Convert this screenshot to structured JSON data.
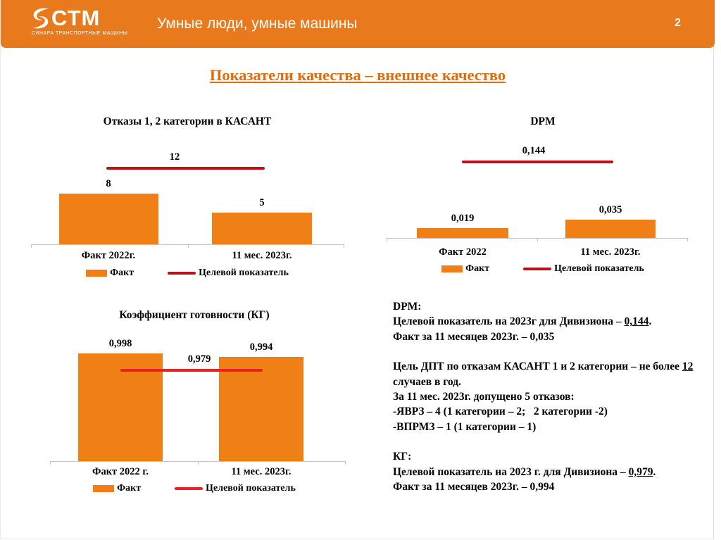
{
  "header": {
    "logo_text": "СТМ",
    "logo_subtext": "СИНАРА ТРАНСПОРТНЫЕ МАШИНЫ",
    "tagline": "Умные люди, умные машины",
    "page_number": "2"
  },
  "slide_title": "Показатели качества – внешнее качество",
  "colors": {
    "header_orange": "#E8791D",
    "bar_orange": "#F07F16",
    "target_dark_red": "#B9121B",
    "target_bright_red": "#ED2024",
    "title_orange": "#E26B0A",
    "axis_gray": "#C6C6C6"
  },
  "chart_data": [
    {
      "type": "bar",
      "title": "Отказы 1, 2 категории в КАСАНТ",
      "categories": [
        "Факт 2022г.",
        "11 мес. 2023г."
      ],
      "values": [
        8,
        5
      ],
      "value_labels": [
        "8",
        "5"
      ],
      "target": 12,
      "target_label": "12",
      "line_color": "#B9121B",
      "legend": {
        "fact": "Факт",
        "target": "Целевой показатель"
      },
      "ylim": [
        0,
        21
      ],
      "grid": false,
      "legend_position": "bottom"
    },
    {
      "type": "bar",
      "title": "DPM",
      "categories": [
        "Факт 2022",
        "11 мес. 2023г."
      ],
      "values": [
        0.019,
        0.035
      ],
      "value_labels": [
        "0,019",
        "0,035"
      ],
      "target": 0.144,
      "target_label": "0,144",
      "line_color": "#B9121B",
      "legend": {
        "fact": "Факт",
        "target": "Целевой показатель"
      },
      "ylim": [
        0,
        0.235
      ],
      "grid": false,
      "legend_position": "bottom"
    },
    {
      "type": "bar",
      "title": "Коэффициент готовности (КГ)",
      "categories": [
        "Факт 2022 г.",
        "11 мес. 2023г."
      ],
      "values": [
        0.998,
        0.994
      ],
      "value_labels": [
        "0,998",
        "0,994"
      ],
      "target": 0.979,
      "target_label": "0,979",
      "line_color": "#ED2024",
      "legend": {
        "fact": "Факт",
        "target": "Целевой показатель"
      },
      "ylim": [
        0.8756,
        1.026
      ],
      "grid": false,
      "legend_position": "bottom"
    }
  ],
  "notes": {
    "dpm_heading": "DPM:",
    "dpm_target_prefix": "Целевой показатель на 2023г для Дивизиона – ",
    "dpm_target_value": "0,144",
    "dpm_target_suffix": ".",
    "dpm_fact": "Факт за 11 месяцев 2023г. – 0,035",
    "kasant_goal_prefix": "Цель ДПТ по отказам КАСАНТ 1 и 2 категории – не более ",
    "kasant_goal_value": "12",
    "kasant_goal_suffix": " случаев в год.",
    "kasant_fact": "За 11 мес. 2023г. допущено 5 отказов:",
    "kasant_item1": "-ЯВРЗ – 4 (1 категории – 2;   2 категории -2)",
    "kasant_item2": "-ВПРМЗ – 1 (1 категории – 1)",
    "kg_heading": "КГ:",
    "kg_target_prefix": "Целевой показатель на 2023 г. для Дивизиона – ",
    "kg_target_value": "0,979",
    "kg_target_suffix": ".",
    "kg_fact": "Факт за 11 месяцев 2023г. – 0,994"
  }
}
